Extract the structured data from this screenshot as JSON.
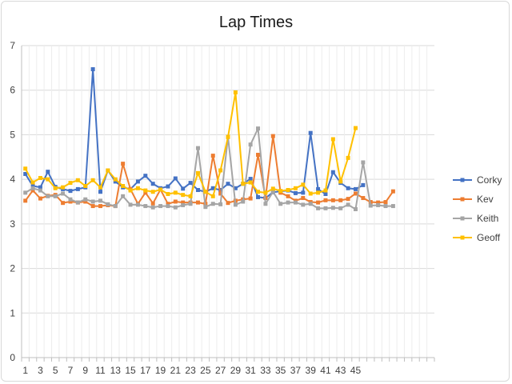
{
  "chart_data": {
    "type": "line",
    "title": "Lap Times",
    "xlabel": "",
    "ylabel": "",
    "ylim": [
      0,
      7
    ],
    "yticks": [
      0,
      1,
      2,
      3,
      4,
      5,
      6,
      7
    ],
    "xlim": [
      1,
      55
    ],
    "xtick_labels": [
      1,
      3,
      5,
      7,
      9,
      11,
      13,
      15,
      17,
      19,
      21,
      23,
      25,
      27,
      29,
      31,
      33,
      35,
      37,
      39,
      41,
      43,
      45
    ],
    "grid": true,
    "legend_position": "right",
    "series": [
      {
        "name": "Corky",
        "color": "#4472C4",
        "values": [
          4.12,
          3.85,
          3.82,
          4.17,
          3.83,
          3.78,
          3.74,
          3.78,
          3.82,
          6.47,
          3.72,
          4.2,
          3.95,
          3.82,
          3.78,
          3.95,
          4.08,
          3.9,
          3.8,
          3.84,
          4.02,
          3.79,
          3.92,
          3.76,
          3.72,
          3.8,
          3.76,
          3.9,
          3.8,
          3.9,
          4.01,
          3.6,
          3.58,
          3.71,
          3.73,
          3.75,
          3.69,
          3.7,
          5.04,
          3.78,
          3.67,
          4.16,
          3.92,
          3.8,
          3.78,
          3.87
        ]
      },
      {
        "name": "Kev",
        "color": "#ED7D31",
        "values": [
          3.52,
          3.75,
          3.57,
          3.63,
          3.65,
          3.47,
          3.5,
          3.48,
          3.5,
          3.4,
          3.4,
          3.42,
          3.4,
          4.35,
          3.78,
          3.45,
          3.7,
          3.46,
          3.77,
          3.45,
          3.5,
          3.48,
          3.48,
          3.48,
          3.45,
          4.53,
          3.68,
          3.47,
          3.52,
          3.55,
          3.57,
          4.55,
          3.58,
          4.97,
          3.7,
          3.62,
          3.52,
          3.58,
          3.49,
          3.48,
          3.53,
          3.53,
          3.53,
          3.56,
          3.68,
          3.58,
          3.49,
          3.48,
          3.49,
          3.73
        ]
      },
      {
        "name": "Keith",
        "color": "#A5A5A5",
        "values": [
          3.7,
          3.8,
          3.75,
          3.62,
          3.62,
          3.68,
          3.55,
          3.48,
          3.55,
          3.5,
          3.52,
          3.44,
          3.4,
          3.62,
          3.43,
          3.43,
          3.4,
          3.37,
          3.4,
          3.4,
          3.37,
          3.42,
          3.45,
          4.7,
          3.38,
          3.45,
          3.44,
          4.95,
          3.43,
          3.5,
          4.78,
          5.14,
          3.45,
          3.72,
          3.45,
          3.48,
          3.48,
          3.43,
          3.45,
          3.35,
          3.35,
          3.36,
          3.35,
          3.43,
          3.33,
          4.38,
          3.41,
          3.42,
          3.4,
          3.4
        ]
      },
      {
        "name": "Geoff",
        "color": "#FFC000",
        "values": [
          4.24,
          3.93,
          4.03,
          4.0,
          3.8,
          3.82,
          3.92,
          3.98,
          3.85,
          3.98,
          3.82,
          4.2,
          4.0,
          3.85,
          3.75,
          3.8,
          3.75,
          3.72,
          3.77,
          3.67,
          3.7,
          3.65,
          3.62,
          4.14,
          3.72,
          3.62,
          4.2,
          4.95,
          5.95,
          3.9,
          3.93,
          3.72,
          3.7,
          3.79,
          3.74,
          3.76,
          3.8,
          3.88,
          3.68,
          3.7,
          3.75,
          4.9,
          3.95,
          4.48,
          5.15
        ]
      }
    ]
  }
}
